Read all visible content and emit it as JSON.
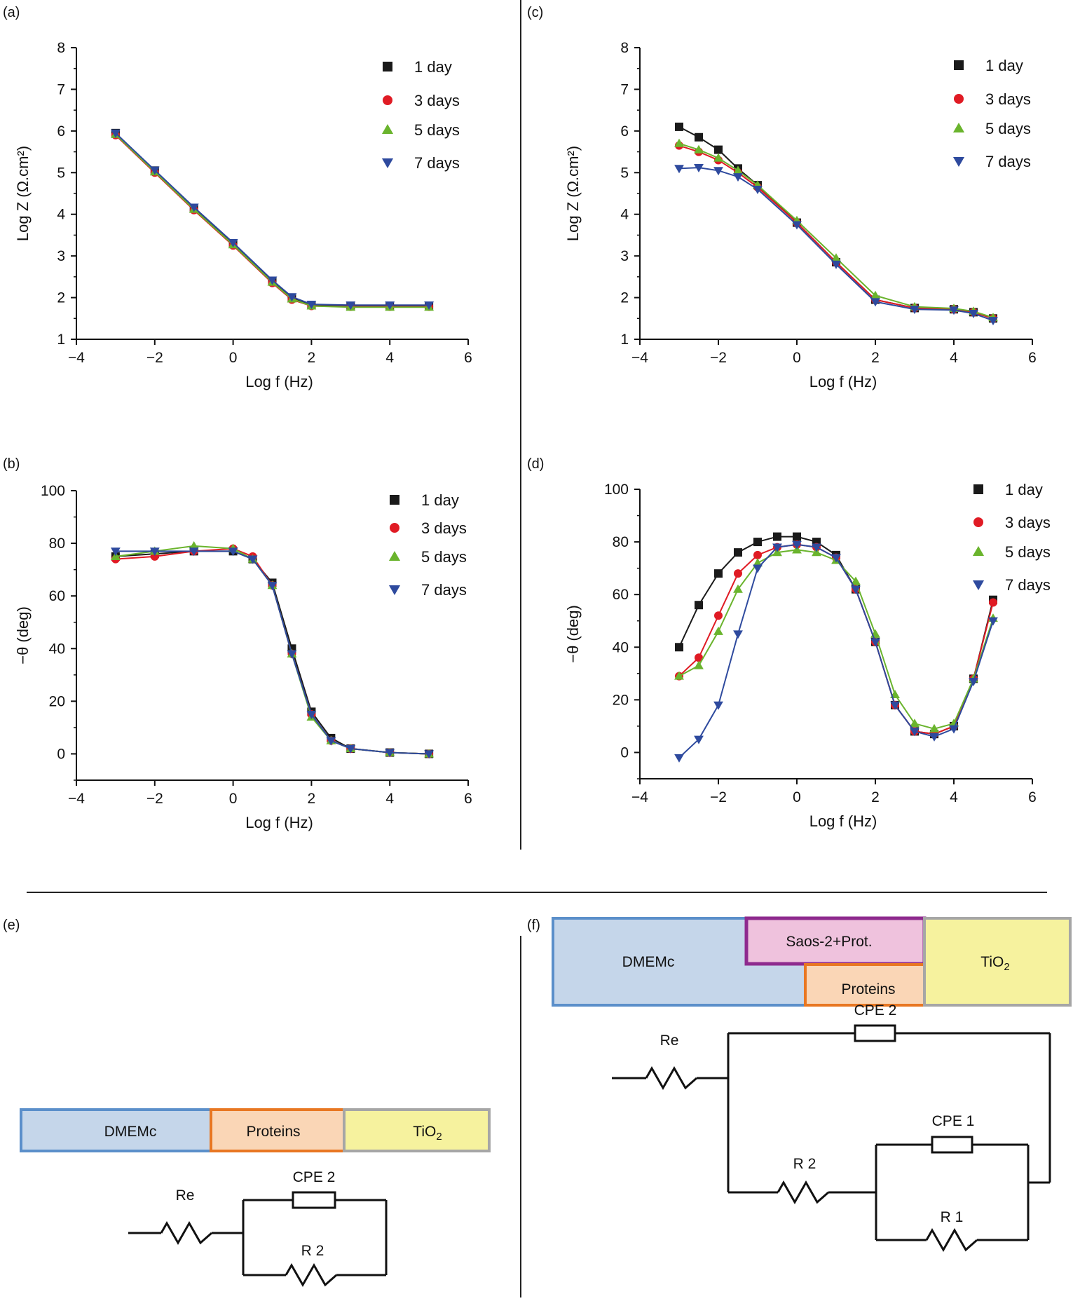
{
  "panel_labels": [
    "(a)",
    "(b)",
    "(c)",
    "(d)",
    "(e)",
    "(f)"
  ],
  "colors": {
    "1 day": "#1a1a1a",
    "3 days": "#e01b24",
    "5 days": "#6ab42d",
    "7 days": "#2e4a9e",
    "dmemc_fill": "#c5d6ea",
    "dmemc_border": "#5b8fca",
    "proteins_fill": "#fad6b6",
    "proteins_border": "#e87722",
    "tio2_fill": "#f6f29e",
    "tio2_border": "#a6a6a6",
    "saos_fill": "#efc2dd",
    "saos_border": "#8e2a8e"
  },
  "chart_data": [
    {
      "id": "a",
      "type": "scatter",
      "xlabel": "Log f (Hz)",
      "ylabel": "Log Z (Ω.cm²)",
      "xlim": [
        -4,
        6
      ],
      "ylim": [
        1,
        8
      ],
      "xticks": [
        "−4",
        "−2",
        "0",
        "2",
        "4",
        "6"
      ],
      "yticks": [
        "1",
        "2",
        "3",
        "4",
        "5",
        "6",
        "7",
        "8"
      ],
      "legend": "top-right",
      "series": [
        {
          "name": "1 day",
          "marker": "square",
          "x": [
            -3,
            -2,
            -1,
            0,
            1,
            1.5,
            2,
            3,
            4,
            5
          ],
          "y": [
            5.95,
            5.05,
            4.15,
            3.3,
            2.4,
            2.0,
            1.82,
            1.8,
            1.8,
            1.8
          ]
        },
        {
          "name": "3 days",
          "marker": "circle",
          "x": [
            -3,
            -2,
            -1,
            0,
            1,
            1.5,
            2,
            3,
            4,
            5
          ],
          "y": [
            5.9,
            5.0,
            4.1,
            3.25,
            2.35,
            1.95,
            1.8,
            1.78,
            1.78,
            1.78
          ]
        },
        {
          "name": "5 days",
          "marker": "triangle-up",
          "x": [
            -3,
            -2,
            -1,
            0,
            1,
            1.5,
            2,
            3,
            4,
            5
          ],
          "y": [
            5.92,
            5.02,
            4.12,
            3.27,
            2.37,
            1.97,
            1.8,
            1.77,
            1.77,
            1.77
          ]
        },
        {
          "name": "7 days",
          "marker": "triangle-down",
          "x": [
            -3,
            -2,
            -1,
            0,
            1,
            1.5,
            2,
            3,
            4,
            5
          ],
          "y": [
            5.95,
            5.06,
            4.17,
            3.32,
            2.42,
            2.02,
            1.84,
            1.82,
            1.82,
            1.82
          ]
        }
      ]
    },
    {
      "id": "b",
      "type": "scatter",
      "xlabel": "Log f (Hz)",
      "ylabel": "−θ (deg)",
      "xlim": [
        -4,
        6
      ],
      "ylim": [
        -10,
        100
      ],
      "xticks": [
        "−4",
        "−2",
        "0",
        "2",
        "4",
        "6"
      ],
      "yticks": [
        "0",
        "20",
        "40",
        "60",
        "80",
        "100"
      ],
      "legend": "top-right",
      "series": [
        {
          "name": "1 day",
          "marker": "square",
          "x": [
            -3,
            -2,
            -1,
            0,
            0.5,
            1,
            1.5,
            2,
            2.5,
            3,
            4,
            5
          ],
          "y": [
            75,
            76,
            77,
            77,
            74,
            65,
            40,
            16,
            6,
            2,
            0.5,
            0
          ]
        },
        {
          "name": "3 days",
          "marker": "circle",
          "x": [
            -3,
            -2,
            -1,
            0,
            0.5,
            1,
            1.5,
            2,
            2.5,
            3,
            4,
            5
          ],
          "y": [
            74,
            75,
            77,
            78,
            75,
            64,
            38,
            15,
            5,
            2,
            0.5,
            0
          ]
        },
        {
          "name": "5 days",
          "marker": "triangle-up",
          "x": [
            -3,
            -2,
            -1,
            0,
            0.5,
            1,
            1.5,
            2,
            2.5,
            3,
            4,
            5
          ],
          "y": [
            75,
            77,
            79,
            78,
            74,
            64,
            38,
            14,
            5,
            2,
            0.5,
            0
          ]
        },
        {
          "name": "7 days",
          "marker": "triangle-down",
          "x": [
            -3,
            -2,
            -1,
            0,
            0.5,
            1,
            1.5,
            2,
            2.5,
            3,
            4,
            5
          ],
          "y": [
            77,
            77,
            77,
            77,
            74,
            64,
            38,
            15,
            5,
            2,
            0.5,
            0
          ]
        }
      ]
    },
    {
      "id": "c",
      "type": "scatter",
      "xlabel": "Log f (Hz)",
      "ylabel": "Log Z (Ω.cm²)",
      "xlim": [
        -4,
        6
      ],
      "ylim": [
        1,
        8
      ],
      "xticks": [
        "−4",
        "−2",
        "0",
        "2",
        "4",
        "6"
      ],
      "yticks": [
        "1",
        "2",
        "3",
        "4",
        "5",
        "6",
        "7",
        "8"
      ],
      "legend": "top-right",
      "series": [
        {
          "name": "1 day",
          "marker": "square",
          "x": [
            -3,
            -2.5,
            -2,
            -1.5,
            -1,
            0,
            1,
            2,
            3,
            4,
            4.5,
            5
          ],
          "y": [
            6.1,
            5.85,
            5.55,
            5.1,
            4.7,
            3.8,
            2.85,
            1.95,
            1.75,
            1.72,
            1.65,
            1.5
          ]
        },
        {
          "name": "3 days",
          "marker": "circle",
          "x": [
            -3,
            -2.5,
            -2,
            -1.5,
            -1,
            0,
            1,
            2,
            3,
            4,
            4.5,
            5
          ],
          "y": [
            5.65,
            5.5,
            5.3,
            5.0,
            4.65,
            3.8,
            2.85,
            1.95,
            1.75,
            1.72,
            1.65,
            1.5
          ]
        },
        {
          "name": "5 days",
          "marker": "triangle-up",
          "x": [
            -3,
            -2.5,
            -2,
            -1.5,
            -1,
            0,
            1,
            2,
            3,
            4,
            4.5,
            5
          ],
          "y": [
            5.7,
            5.55,
            5.35,
            5.05,
            4.7,
            3.85,
            2.95,
            2.05,
            1.78,
            1.74,
            1.67,
            1.52
          ]
        },
        {
          "name": "7 days",
          "marker": "triangle-down",
          "x": [
            -3,
            -2.5,
            -2,
            -1.5,
            -1,
            0,
            1,
            2,
            3,
            4,
            4.5,
            5
          ],
          "y": [
            5.1,
            5.12,
            5.05,
            4.9,
            4.6,
            3.75,
            2.8,
            1.9,
            1.72,
            1.7,
            1.62,
            1.45
          ]
        }
      ]
    },
    {
      "id": "d",
      "type": "scatter",
      "xlabel": "Log f (Hz)",
      "ylabel": "−θ (deg)",
      "xlim": [
        -4,
        6
      ],
      "ylim": [
        -10,
        100
      ],
      "xticks": [
        "−4",
        "−2",
        "0",
        "2",
        "4",
        "6"
      ],
      "yticks": [
        "0",
        "20",
        "40",
        "60",
        "80",
        "100"
      ],
      "legend": "top-right",
      "series": [
        {
          "name": "1 day",
          "marker": "square",
          "x": [
            -3,
            -2.5,
            -2,
            -1.5,
            -1,
            -0.5,
            0,
            0.5,
            1,
            1.5,
            2,
            2.5,
            3,
            3.5,
            4,
            4.5,
            5
          ],
          "y": [
            40,
            56,
            68,
            76,
            80,
            82,
            82,
            80,
            75,
            62,
            42,
            18,
            8,
            7,
            10,
            28,
            58
          ]
        },
        {
          "name": "3 days",
          "marker": "circle",
          "x": [
            -3,
            -2.5,
            -2,
            -1.5,
            -1,
            -0.5,
            0,
            0.5,
            1,
            1.5,
            2,
            2.5,
            3,
            3.5,
            4,
            4.5,
            5
          ],
          "y": [
            29,
            36,
            52,
            68,
            75,
            78,
            79,
            78,
            74,
            62,
            42,
            18,
            8,
            7,
            10,
            28,
            57
          ]
        },
        {
          "name": "5 days",
          "marker": "triangle-up",
          "x": [
            -3,
            -2.5,
            -2,
            -1.5,
            -1,
            -0.5,
            0,
            0.5,
            1,
            1.5,
            2,
            2.5,
            3,
            3.5,
            4,
            4.5,
            5
          ],
          "y": [
            29,
            33,
            46,
            62,
            72,
            76,
            77,
            76,
            73,
            65,
            45,
            22,
            11,
            9,
            11,
            28,
            51
          ]
        },
        {
          "name": "7 days",
          "marker": "triangle-down",
          "x": [
            -3,
            -2.5,
            -2,
            -1.5,
            -1,
            -0.5,
            0,
            0.5,
            1,
            1.5,
            2,
            2.5,
            3,
            3.5,
            4,
            4.5,
            5
          ],
          "y": [
            -2,
            5,
            18,
            45,
            70,
            78,
            79,
            78,
            74,
            62,
            42,
            18,
            8,
            6,
            9,
            27,
            50
          ]
        }
      ]
    }
  ],
  "diagram_e": {
    "boxes": [
      "DMEMc",
      "Proteins",
      "TiO2"
    ],
    "circuit": {
      "re": "Re",
      "cpe": "CPE 2",
      "r": "R 2"
    }
  },
  "diagram_f": {
    "boxes": {
      "dmemc": "DMEMc",
      "saos": "Saos-2+Prot.",
      "proteins": "Proteins",
      "tio2": "TiO2"
    },
    "circuit": {
      "re": "Re",
      "cpe2": "CPE 2",
      "r2": "R 2",
      "cpe1": "CPE 1",
      "r1": "R 1"
    }
  }
}
